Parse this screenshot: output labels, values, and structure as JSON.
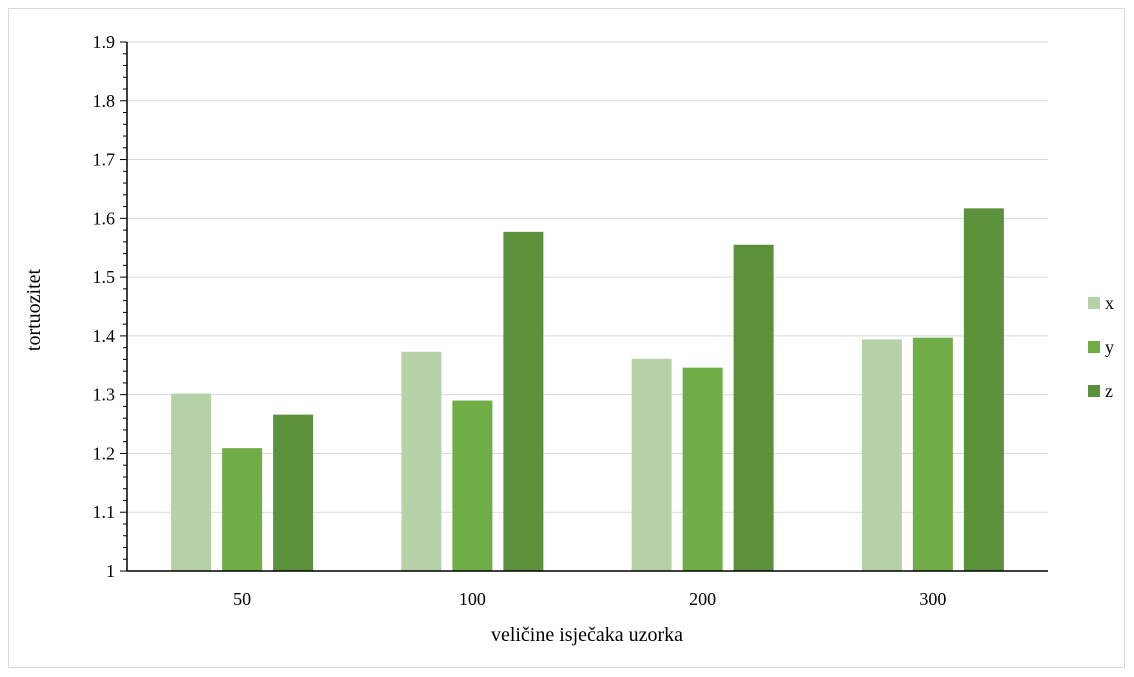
{
  "chart_data": {
    "type": "bar",
    "title": "",
    "xlabel": "veličine isječaka uzorka",
    "ylabel": "tortuozitet",
    "categories": [
      "50",
      "100",
      "200",
      "300"
    ],
    "ylim": [
      1,
      1.9
    ],
    "yticks": [
      "1",
      "1.1",
      "1.2",
      "1.3",
      "1.4",
      "1.5",
      "1.6",
      "1.7",
      "1.8",
      "1.9"
    ],
    "grid": true,
    "legend_position": "right",
    "series": [
      {
        "name": "x",
        "color": "#b6d1a8",
        "values": [
          1.302,
          1.373,
          1.361,
          1.394
        ]
      },
      {
        "name": "y",
        "color": "#70ad47",
        "values": [
          1.209,
          1.29,
          1.346,
          1.397
        ]
      },
      {
        "name": "z",
        "color": "#5a913a",
        "values": [
          1.266,
          1.577,
          1.555,
          1.617
        ]
      }
    ]
  }
}
